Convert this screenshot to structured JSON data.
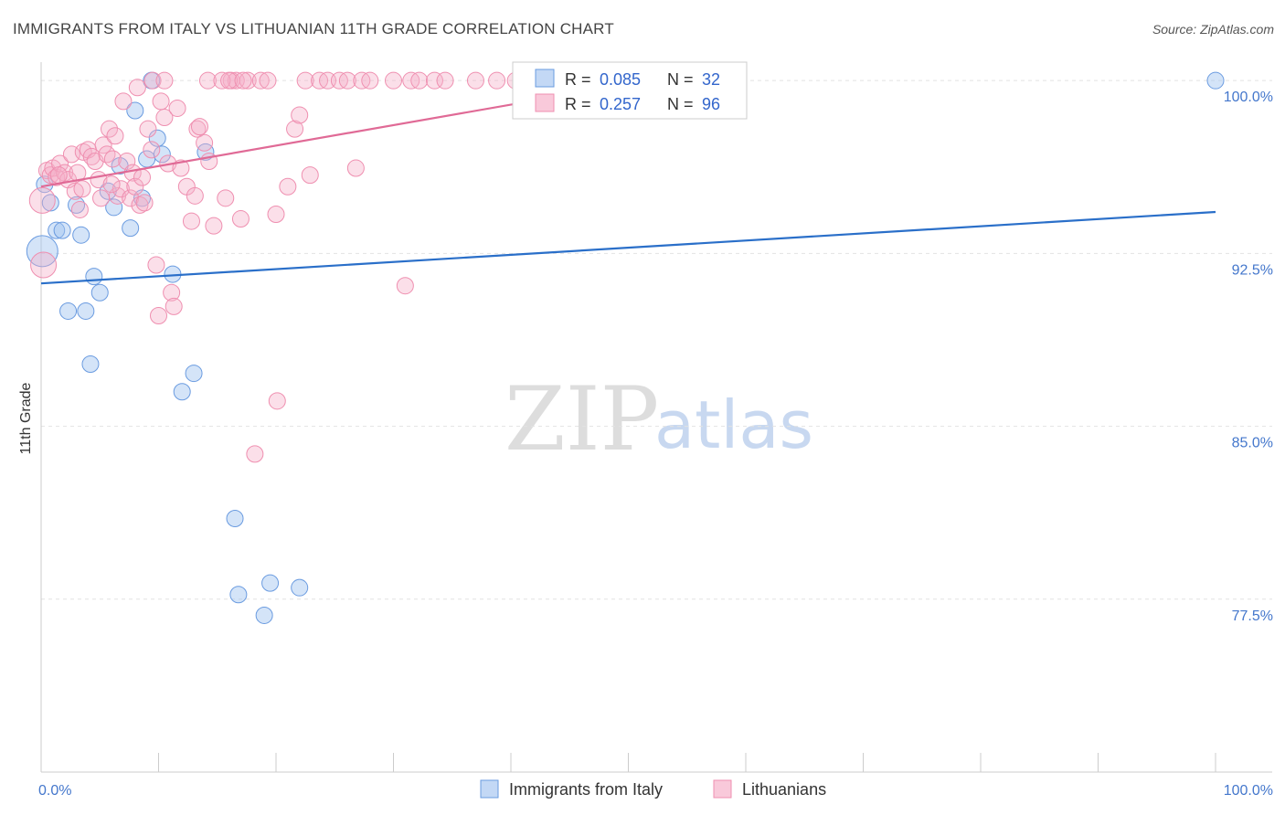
{
  "header": {
    "title": "IMMIGRANTS FROM ITALY VS LITHUANIAN 11TH GRADE CORRELATION CHART",
    "source": "Source: ZipAtlas.com"
  },
  "watermark": {
    "zip": "ZIP",
    "atlas": "atlas"
  },
  "chart_data": {
    "type": "scatter",
    "title": "IMMIGRANTS FROM ITALY VS LITHUANIAN 11TH GRADE CORRELATION CHART",
    "xlabel": "",
    "ylabel": "11th Grade",
    "xlim": [
      0,
      100
    ],
    "ylim": [
      70,
      100.8
    ],
    "x_tick_labels": [
      "0.0%",
      "100.0%"
    ],
    "y_ticks": [
      77.5,
      85.0,
      92.5,
      100.0
    ],
    "y_tick_labels": [
      "77.5%",
      "85.0%",
      "92.5%",
      "100.0%"
    ],
    "grid": true,
    "legend": {
      "r_label": "R =",
      "n_label": "N =",
      "entries": [
        {
          "r": "0.085",
          "n": "32"
        },
        {
          "r": "0.257",
          "n": "96"
        }
      ]
    },
    "colors": {
      "italy": "#6a9be0",
      "lithuanians": "#ef8fb0",
      "italy_line": "#2a6fc9",
      "lith_line": "#e06a96"
    },
    "series": [
      {
        "name": "Immigrants from Italy",
        "trend": {
          "x": [
            0,
            100
          ],
          "y": [
            91.2,
            94.3
          ]
        },
        "points": [
          [
            0.1,
            92.6
          ],
          [
            0.8,
            94.7
          ],
          [
            1.3,
            93.5
          ],
          [
            1.8,
            93.5
          ],
          [
            2.3,
            90.0
          ],
          [
            3.0,
            94.6
          ],
          [
            3.4,
            93.3
          ],
          [
            3.8,
            90.0
          ],
          [
            4.2,
            87.7
          ],
          [
            4.5,
            91.5
          ],
          [
            5.0,
            90.8
          ],
          [
            5.7,
            95.2
          ],
          [
            6.2,
            94.5
          ],
          [
            6.7,
            96.3
          ],
          [
            7.6,
            93.6
          ],
          [
            8.0,
            98.7
          ],
          [
            8.6,
            94.9
          ],
          [
            9.0,
            96.6
          ],
          [
            9.4,
            100.0
          ],
          [
            9.9,
            97.5
          ],
          [
            10.3,
            96.8
          ],
          [
            11.2,
            91.6
          ],
          [
            12.0,
            86.5
          ],
          [
            13.0,
            87.3
          ],
          [
            14.0,
            96.9
          ],
          [
            16.5,
            81.0
          ],
          [
            16.8,
            77.7
          ],
          [
            19.0,
            76.8
          ],
          [
            19.5,
            78.2
          ],
          [
            22.0,
            78.0
          ],
          [
            100.0,
            100.0
          ],
          [
            0.3,
            95.5
          ]
        ]
      },
      {
        "name": "Lithuanians",
        "trend": {
          "x": [
            0,
            45
          ],
          "y": [
            95.4,
            99.4
          ]
        },
        "points": [
          [
            0.1,
            94.8
          ],
          [
            0.2,
            92.0
          ],
          [
            0.5,
            96.1
          ],
          [
            0.8,
            95.9
          ],
          [
            1.0,
            96.2
          ],
          [
            1.3,
            95.8
          ],
          [
            1.6,
            96.4
          ],
          [
            2.0,
            96.0
          ],
          [
            2.3,
            95.7
          ],
          [
            2.6,
            96.8
          ],
          [
            2.9,
            95.2
          ],
          [
            3.1,
            96.0
          ],
          [
            3.3,
            94.4
          ],
          [
            3.6,
            96.9
          ],
          [
            4.0,
            97.0
          ],
          [
            4.3,
            96.7
          ],
          [
            4.6,
            96.5
          ],
          [
            4.9,
            95.7
          ],
          [
            5.1,
            94.9
          ],
          [
            5.3,
            97.2
          ],
          [
            5.6,
            96.8
          ],
          [
            5.8,
            97.9
          ],
          [
            6.1,
            96.6
          ],
          [
            6.3,
            97.6
          ],
          [
            6.5,
            95.0
          ],
          [
            6.8,
            95.3
          ],
          [
            7.0,
            99.1
          ],
          [
            7.3,
            96.5
          ],
          [
            7.6,
            94.9
          ],
          [
            7.8,
            96.0
          ],
          [
            8.0,
            95.4
          ],
          [
            8.2,
            99.7
          ],
          [
            8.4,
            94.6
          ],
          [
            8.6,
            95.8
          ],
          [
            8.8,
            94.7
          ],
          [
            9.1,
            97.9
          ],
          [
            9.4,
            97.0
          ],
          [
            9.8,
            92.0
          ],
          [
            10.0,
            89.8
          ],
          [
            10.2,
            99.1
          ],
          [
            10.5,
            98.4
          ],
          [
            10.8,
            96.4
          ],
          [
            11.1,
            90.8
          ],
          [
            11.3,
            90.2
          ],
          [
            11.6,
            98.8
          ],
          [
            11.9,
            96.2
          ],
          [
            12.4,
            95.4
          ],
          [
            12.8,
            93.9
          ],
          [
            13.1,
            95.0
          ],
          [
            13.3,
            97.9
          ],
          [
            13.5,
            98.0
          ],
          [
            13.9,
            97.3
          ],
          [
            14.3,
            96.5
          ],
          [
            14.7,
            93.7
          ],
          [
            15.7,
            94.9
          ],
          [
            16.2,
            100.0
          ],
          [
            16.6,
            100.0
          ],
          [
            17.0,
            94.0
          ],
          [
            17.6,
            100.0
          ],
          [
            18.2,
            83.8
          ],
          [
            18.7,
            100.0
          ],
          [
            19.3,
            100.0
          ],
          [
            20.0,
            94.2
          ],
          [
            20.1,
            86.1
          ],
          [
            21.0,
            95.4
          ],
          [
            21.6,
            97.9
          ],
          [
            22.0,
            98.5
          ],
          [
            22.5,
            100.0
          ],
          [
            22.9,
            95.9
          ],
          [
            23.7,
            100.0
          ],
          [
            24.4,
            100.0
          ],
          [
            25.4,
            100.0
          ],
          [
            26.1,
            100.0
          ],
          [
            26.8,
            96.2
          ],
          [
            27.3,
            100.0
          ],
          [
            28.0,
            100.0
          ],
          [
            30.0,
            100.0
          ],
          [
            31.0,
            91.1
          ],
          [
            31.5,
            100.0
          ],
          [
            32.2,
            100.0
          ],
          [
            33.5,
            100.0
          ],
          [
            34.4,
            100.0
          ],
          [
            37.0,
            100.0
          ],
          [
            38.8,
            100.0
          ],
          [
            40.4,
            100.0
          ],
          [
            44.0,
            100.0
          ],
          [
            45.5,
            100.0
          ],
          [
            9.5,
            100.0
          ],
          [
            10.5,
            100.0
          ],
          [
            14.2,
            100.0
          ],
          [
            15.4,
            100.0
          ],
          [
            16.0,
            100.0
          ],
          [
            17.2,
            100.0
          ],
          [
            1.5,
            95.9
          ],
          [
            3.5,
            95.3
          ],
          [
            6.0,
            95.5
          ]
        ]
      }
    ]
  }
}
